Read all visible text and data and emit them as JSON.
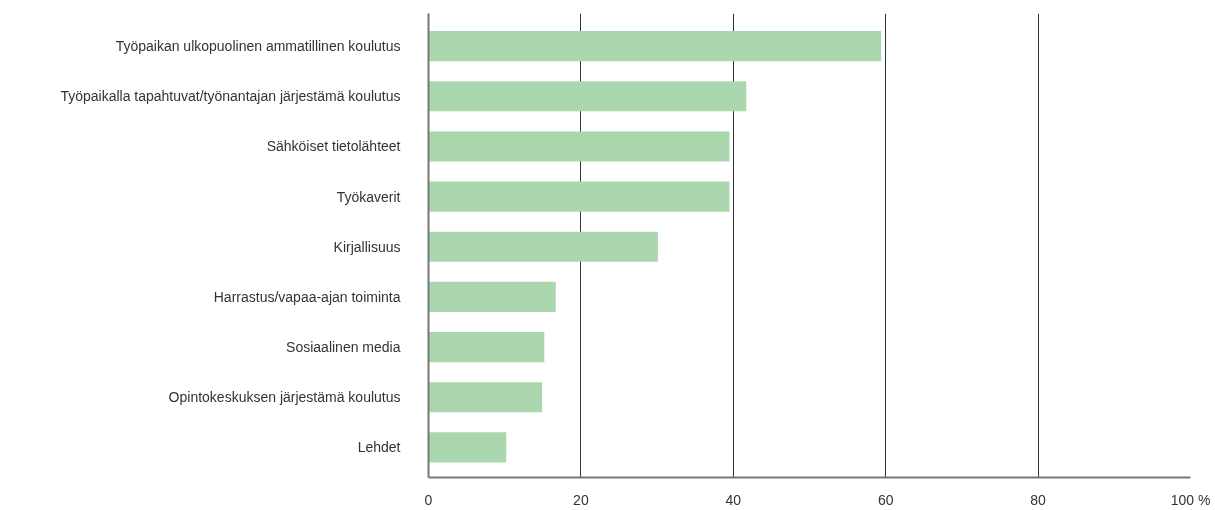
{
  "chart_data": {
    "type": "bar",
    "orientation": "horizontal",
    "categories": [
      "Työpaikan ulkopuolinen ammatillinen koulutus",
      "Työpaikalla tapahtuvat/työnantajan järjestämä koulutus",
      "Sähköiset tietolähteet",
      "Työkaverit",
      "Kirjallisuus",
      "Harrastus/vapaa-ajan toiminta",
      "Sosiaalinen media",
      "Opintokeskuksen järjestämä koulutus",
      "Lehdet"
    ],
    "values": [
      59.4,
      41.7,
      39.5,
      39.5,
      30.1,
      16.7,
      15.2,
      14.9,
      10.2
    ],
    "color": "#abd7ae",
    "xlim": [
      0,
      100
    ],
    "xticks": [
      0,
      20,
      40,
      60,
      80,
      {
        "value": 100,
        "label": "100 %"
      }
    ],
    "grid": "x"
  }
}
